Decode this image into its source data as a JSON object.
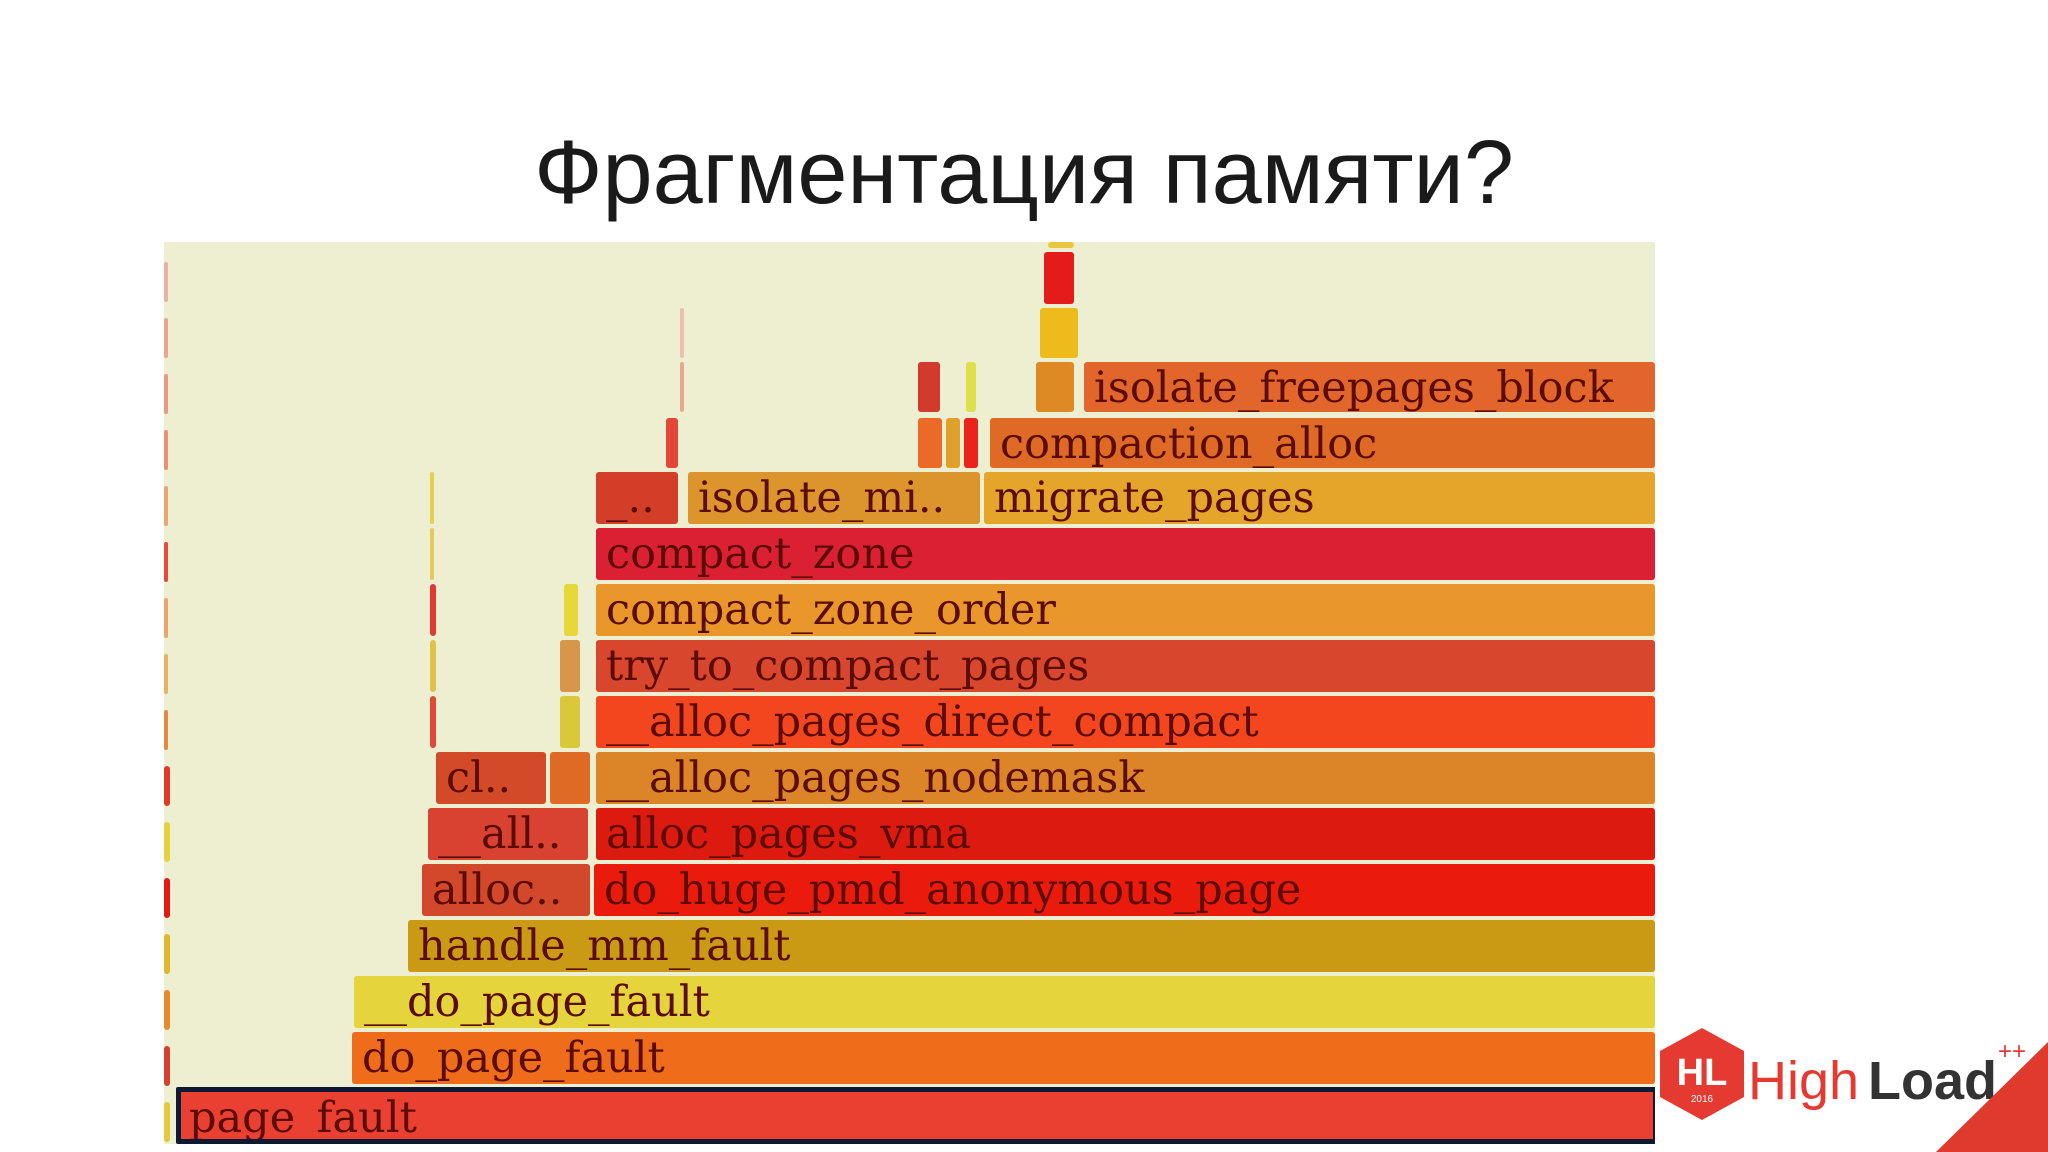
{
  "slide": {
    "title": "Фрагментация памяти?"
  },
  "flamegraph": {
    "frames": [
      {
        "label": "page_fault",
        "color": "#ea4032",
        "selected": true
      },
      {
        "label": "do_page_fault",
        "color": "#ee6c1a"
      },
      {
        "label": "__do_page_fault",
        "color": "#e6d43c"
      },
      {
        "label": "handle_mm_fault",
        "color": "#cb9a14"
      },
      {
        "label": "alloc..",
        "color": "#d3472a"
      },
      {
        "label": "do_huge_pmd_anonymous_page",
        "color": "#ea1a0c"
      },
      {
        "label": "__all..",
        "color": "#d94131"
      },
      {
        "label": "alloc_pages_vma",
        "color": "#dc1a10"
      },
      {
        "label": "cl..",
        "color": "#d34a28"
      },
      {
        "label": "__alloc_pages_nodemask",
        "color": "#dc8428"
      },
      {
        "label": "__alloc_pages_direct_compact",
        "color": "#f3461e"
      },
      {
        "label": "try_to_compact_pages",
        "color": "#d9462e"
      },
      {
        "label": "compact_zone_order",
        "color": "#e9962a"
      },
      {
        "label": "compact_zone",
        "color": "#dc2034"
      },
      {
        "label": "_..",
        "color": "#d23e28"
      },
      {
        "label": "isolate_mi..",
        "color": "#dc952c"
      },
      {
        "label": "migrate_pages",
        "color": "#e5a42a"
      },
      {
        "label": "compaction_alloc",
        "color": "#df6a25"
      },
      {
        "label": "isolate_freepages_block",
        "color": "#e2652b"
      }
    ]
  },
  "logo": {
    "badge": "HL",
    "year": "2016",
    "word_high": "High",
    "word_load": "Load",
    "plus": "++"
  }
}
